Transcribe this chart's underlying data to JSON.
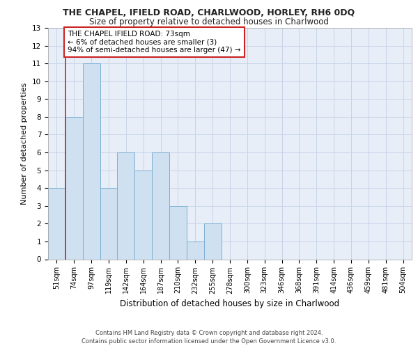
{
  "title": "THE CHAPEL, IFIELD ROAD, CHARLWOOD, HORLEY, RH6 0DQ",
  "subtitle": "Size of property relative to detached houses in Charlwood",
  "xlabel": "Distribution of detached houses by size in Charlwood",
  "ylabel": "Number of detached properties",
  "bar_labels": [
    "51sqm",
    "74sqm",
    "97sqm",
    "119sqm",
    "142sqm",
    "164sqm",
    "187sqm",
    "210sqm",
    "232sqm",
    "255sqm",
    "278sqm",
    "300sqm",
    "323sqm",
    "346sqm",
    "368sqm",
    "391sqm",
    "414sqm",
    "436sqm",
    "459sqm",
    "481sqm",
    "504sqm"
  ],
  "bar_values": [
    4,
    8,
    11,
    4,
    6,
    5,
    6,
    3,
    1,
    2,
    0,
    0,
    0,
    0,
    0,
    0,
    0,
    0,
    0,
    0,
    0
  ],
  "bar_color": "#cfe0f0",
  "bar_edgecolor": "#7aafd4",
  "plot_bg_color": "#e8eef8",
  "grid_color": "#c8d4e8",
  "vline_color": "#cc2222",
  "annotation_text": "THE CHAPEL IFIELD ROAD: 73sqm\n← 6% of detached houses are smaller (3)\n94% of semi-detached houses are larger (47) →",
  "annotation_box_edgecolor": "#cc2222",
  "ylim": [
    0,
    13
  ],
  "yticks": [
    0,
    1,
    2,
    3,
    4,
    5,
    6,
    7,
    8,
    9,
    10,
    11,
    12,
    13
  ],
  "footer_line1": "Contains HM Land Registry data © Crown copyright and database right 2024.",
  "footer_line2": "Contains public sector information licensed under the Open Government Licence v3.0."
}
